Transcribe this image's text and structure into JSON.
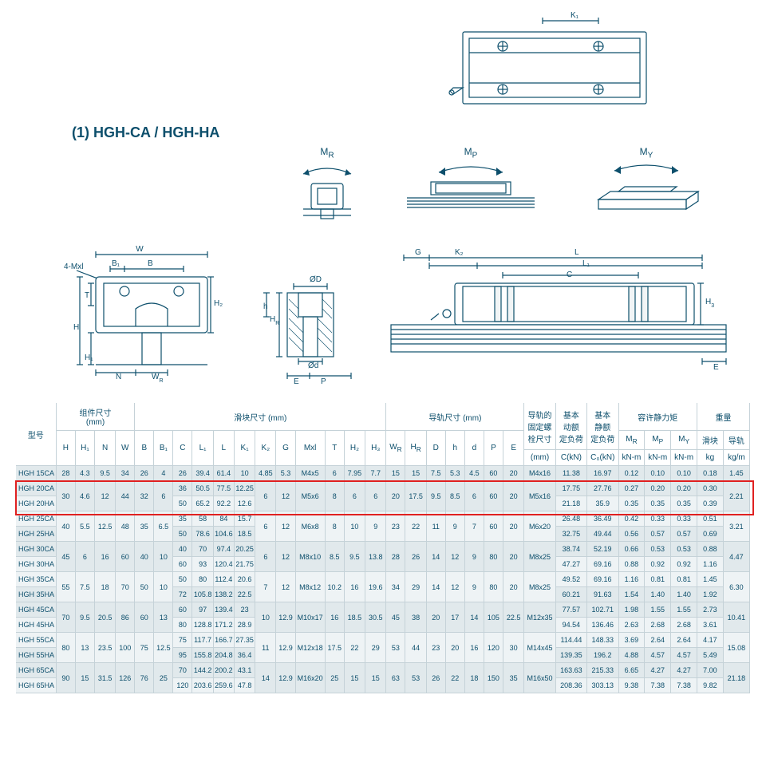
{
  "title": "(1) HGH-CA / HGH-HA",
  "moment_labels": {
    "mr": "M",
    "mr_sub": "R",
    "mp": "M",
    "mp_sub": "P",
    "my": "M",
    "my_sub": "Y"
  },
  "dims_top": {
    "k1": "K₁"
  },
  "dims_front": {
    "w": "W",
    "b": "B",
    "b1": "B₁",
    "t": "T",
    "h": "H",
    "h1": "H₁",
    "h2": "H₂",
    "n": "N",
    "wr": "W_R",
    "fourMxl": "4-Mxl"
  },
  "dims_bolt": {
    "OD": "ØD",
    "Od": "Ød",
    "hr": "H_R",
    "h": "h",
    "e": "E",
    "p": "P"
  },
  "dims_side": {
    "g": "G",
    "k2": "K₂",
    "c": "C",
    "l": "L",
    "l1": "L₁",
    "h3": "H₃",
    "e": "E"
  },
  "headers": {
    "model": "型号",
    "assembly": "组件尺寸",
    "assembly_unit": "(mm)",
    "block": "滑块尺寸 (mm)",
    "rail": "导轨尺寸 (mm)",
    "railbolt": "导轨的\n固定螺\n栓尺寸",
    "dyn": "基本\n动额\n定负荷",
    "stat": "基本\n静额\n定负荷",
    "moment": "容许静力矩",
    "mass": "重量",
    "H": "H",
    "H1": "H₁",
    "N": "N",
    "W": "W",
    "B": "B",
    "B1": "B₁",
    "C": "C",
    "L1": "L₁",
    "L": "L",
    "K1": "K₁",
    "K2": "K₂",
    "G": "G",
    "Mxl": "Mxl",
    "T": "T",
    "H2": "H₂",
    "H3": "H₃",
    "WR": "W_R",
    "HR": "H_R",
    "D": "D",
    "hh": "h",
    "dd": "d",
    "P": "P",
    "E": "E",
    "mm": "(mm)",
    "CkN": "C(kN)",
    "C0kN": "C₀(kN)",
    "MR": "M_R",
    "MP": "M_P",
    "MY": "M_Y",
    "kNm": "kN-m",
    "block_mass": "滑块",
    "rail_mass": "导轨",
    "kg": "kg",
    "kgm": "kg/m"
  },
  "rows": [
    {
      "model": "HGH 15CA",
      "H": "28",
      "H1": "4.3",
      "N": "9.5",
      "W": "34",
      "B": "26",
      "B1": "4",
      "C": "26",
      "L1": "39.4",
      "L": "61.4",
      "K1": "10",
      "K2": "4.85",
      "G": "5.3",
      "Mxl": "M4x5",
      "T": "6",
      "H2": "7.95",
      "H3": "7.7",
      "WR": "15",
      "HR": "15",
      "D": "7.5",
      "h": "5.3",
      "d": "4.5",
      "P": "60",
      "E": "20",
      "bolt": "M4x16",
      "CkN": "11.38",
      "C0kN": "16.97",
      "MR": "0.12",
      "MP": "0.10",
      "MY": "0.10",
      "kg": "0.18",
      "kgm": "1.45"
    },
    {
      "model": "HGH 20CA",
      "H": "30",
      "H1": "4.6",
      "N": "12",
      "W": "44",
      "B": "32",
      "B1": "6",
      "C": "36",
      "L1": "50.5",
      "L": "77.5",
      "K1": "12.25",
      "K2": "6",
      "G": "12",
      "Mxl": "M5x6",
      "T": "8",
      "H2": "6",
      "H3": "6",
      "WR": "20",
      "HR": "17.5",
      "D": "9.5",
      "h": "8.5",
      "d": "6",
      "P": "60",
      "E": "20",
      "bolt": "M5x16",
      "CkN": "17.75",
      "C0kN": "27.76",
      "MR": "0.27",
      "MP": "0.20",
      "MY": "0.20",
      "kg": "0.30",
      "kgm": "2.21"
    },
    {
      "model": "HGH 20HA",
      "H": "",
      "H1": "",
      "N": "",
      "W": "",
      "B": "",
      "B1": "",
      "C": "50",
      "L1": "65.2",
      "L": "92.2",
      "K1": "12.6",
      "K2": "",
      "G": "",
      "Mxl": "",
      "T": "",
      "H2": "",
      "H3": "",
      "WR": "",
      "HR": "",
      "D": "",
      "h": "",
      "d": "",
      "P": "",
      "E": "",
      "bolt": "",
      "CkN": "21.18",
      "C0kN": "35.9",
      "MR": "0.35",
      "MP": "0.35",
      "MY": "0.35",
      "kg": "0.39",
      "kgm": ""
    },
    {
      "model": "HGH 25CA",
      "H": "40",
      "H1": "5.5",
      "N": "12.5",
      "W": "48",
      "B": "35",
      "B1": "6.5",
      "C": "35",
      "L1": "58",
      "L": "84",
      "K1": "15.7",
      "K2": "6",
      "G": "12",
      "Mxl": "M6x8",
      "T": "8",
      "H2": "10",
      "H3": "9",
      "WR": "23",
      "HR": "22",
      "D": "11",
      "h": "9",
      "d": "7",
      "P": "60",
      "E": "20",
      "bolt": "M6x20",
      "CkN": "26.48",
      "C0kN": "36.49",
      "MR": "0.42",
      "MP": "0.33",
      "MY": "0.33",
      "kg": "0.51",
      "kgm": "3.21"
    },
    {
      "model": "HGH 25HA",
      "H": "",
      "H1": "",
      "N": "",
      "W": "",
      "B": "",
      "B1": "",
      "C": "50",
      "L1": "78.6",
      "L": "104.6",
      "K1": "18.5",
      "K2": "",
      "G": "",
      "Mxl": "",
      "T": "",
      "H2": "",
      "H3": "",
      "WR": "",
      "HR": "",
      "D": "",
      "h": "",
      "d": "",
      "P": "",
      "E": "",
      "bolt": "",
      "CkN": "32.75",
      "C0kN": "49.44",
      "MR": "0.56",
      "MP": "0.57",
      "MY": "0.57",
      "kg": "0.69",
      "kgm": ""
    },
    {
      "model": "HGH 30CA",
      "H": "45",
      "H1": "6",
      "N": "16",
      "W": "60",
      "B": "40",
      "B1": "10",
      "C": "40",
      "L1": "70",
      "L": "97.4",
      "K1": "20.25",
      "K2": "6",
      "G": "12",
      "Mxl": "M8x10",
      "T": "8.5",
      "H2": "9.5",
      "H3": "13.8",
      "WR": "28",
      "HR": "26",
      "D": "14",
      "h": "12",
      "d": "9",
      "P": "80",
      "E": "20",
      "bolt": "M8x25",
      "CkN": "38.74",
      "C0kN": "52.19",
      "MR": "0.66",
      "MP": "0.53",
      "MY": "0.53",
      "kg": "0.88",
      "kgm": "4.47"
    },
    {
      "model": "HGH 30HA",
      "H": "",
      "H1": "",
      "N": "",
      "W": "",
      "B": "",
      "B1": "",
      "C": "60",
      "L1": "93",
      "L": "120.4",
      "K1": "21.75",
      "K2": "",
      "G": "",
      "Mxl": "",
      "T": "",
      "H2": "",
      "H3": "",
      "WR": "",
      "HR": "",
      "D": "",
      "h": "",
      "d": "",
      "P": "",
      "E": "",
      "bolt": "",
      "CkN": "47.27",
      "C0kN": "69.16",
      "MR": "0.88",
      "MP": "0.92",
      "MY": "0.92",
      "kg": "1.16",
      "kgm": ""
    },
    {
      "model": "HGH 35CA",
      "H": "55",
      "H1": "7.5",
      "N": "18",
      "W": "70",
      "B": "50",
      "B1": "10",
      "C": "50",
      "L1": "80",
      "L": "112.4",
      "K1": "20.6",
      "K2": "7",
      "G": "12",
      "Mxl": "M8x12",
      "T": "10.2",
      "H2": "16",
      "H3": "19.6",
      "WR": "34",
      "HR": "29",
      "D": "14",
      "h": "12",
      "d": "9",
      "P": "80",
      "E": "20",
      "bolt": "M8x25",
      "CkN": "49.52",
      "C0kN": "69.16",
      "MR": "1.16",
      "MP": "0.81",
      "MY": "0.81",
      "kg": "1.45",
      "kgm": "6.30"
    },
    {
      "model": "HGH 35HA",
      "H": "",
      "H1": "",
      "N": "",
      "W": "",
      "B": "",
      "B1": "",
      "C": "72",
      "L1": "105.8",
      "L": "138.2",
      "K1": "22.5",
      "K2": "",
      "G": "",
      "Mxl": "",
      "T": "",
      "H2": "",
      "H3": "",
      "WR": "",
      "HR": "",
      "D": "",
      "h": "",
      "d": "",
      "P": "",
      "E": "",
      "bolt": "",
      "CkN": "60.21",
      "C0kN": "91.63",
      "MR": "1.54",
      "MP": "1.40",
      "MY": "1.40",
      "kg": "1.92",
      "kgm": ""
    },
    {
      "model": "HGH 45CA",
      "H": "70",
      "H1": "9.5",
      "N": "20.5",
      "W": "86",
      "B": "60",
      "B1": "13",
      "C": "60",
      "L1": "97",
      "L": "139.4",
      "K1": "23",
      "K2": "10",
      "G": "12.9",
      "Mxl": "M10x17",
      "T": "16",
      "H2": "18.5",
      "H3": "30.5",
      "WR": "45",
      "HR": "38",
      "D": "20",
      "h": "17",
      "d": "14",
      "P": "105",
      "E": "22.5",
      "bolt": "M12x35",
      "CkN": "77.57",
      "C0kN": "102.71",
      "MR": "1.98",
      "MP": "1.55",
      "MY": "1.55",
      "kg": "2.73",
      "kgm": "10.41"
    },
    {
      "model": "HGH 45HA",
      "H": "",
      "H1": "",
      "N": "",
      "W": "",
      "B": "",
      "B1": "",
      "C": "80",
      "L1": "128.8",
      "L": "171.2",
      "K1": "28.9",
      "K2": "",
      "G": "",
      "Mxl": "",
      "T": "",
      "H2": "",
      "H3": "",
      "WR": "",
      "HR": "",
      "D": "",
      "h": "",
      "d": "",
      "P": "",
      "E": "",
      "bolt": "",
      "CkN": "94.54",
      "C0kN": "136.46",
      "MR": "2.63",
      "MP": "2.68",
      "MY": "2.68",
      "kg": "3.61",
      "kgm": ""
    },
    {
      "model": "HGH 55CA",
      "H": "80",
      "H1": "13",
      "N": "23.5",
      "W": "100",
      "B": "75",
      "B1": "12.5",
      "C": "75",
      "L1": "117.7",
      "L": "166.7",
      "K1": "27.35",
      "K2": "11",
      "G": "12.9",
      "Mxl": "M12x18",
      "T": "17.5",
      "H2": "22",
      "H3": "29",
      "WR": "53",
      "HR": "44",
      "D": "23",
      "h": "20",
      "d": "16",
      "P": "120",
      "E": "30",
      "bolt": "M14x45",
      "CkN": "114.44",
      "C0kN": "148.33",
      "MR": "3.69",
      "MP": "2.64",
      "MY": "2.64",
      "kg": "4.17",
      "kgm": "15.08"
    },
    {
      "model": "HGH 55HA",
      "H": "",
      "H1": "",
      "N": "",
      "W": "",
      "B": "",
      "B1": "",
      "C": "95",
      "L1": "155.8",
      "L": "204.8",
      "K1": "36.4",
      "K2": "",
      "G": "",
      "Mxl": "",
      "T": "",
      "H2": "",
      "H3": "",
      "WR": "",
      "HR": "",
      "D": "",
      "h": "",
      "d": "",
      "P": "",
      "E": "",
      "bolt": "",
      "CkN": "139.35",
      "C0kN": "196.2",
      "MR": "4.88",
      "MP": "4.57",
      "MY": "4.57",
      "kg": "5.49",
      "kgm": ""
    },
    {
      "model": "HGH 65CA",
      "H": "90",
      "H1": "15",
      "N": "31.5",
      "W": "126",
      "B": "76",
      "B1": "25",
      "C": "70",
      "L1": "144.2",
      "L": "200.2",
      "K1": "43.1",
      "K2": "14",
      "G": "12.9",
      "Mxl": "M16x20",
      "T": "25",
      "H2": "15",
      "H3": "15",
      "WR": "63",
      "HR": "53",
      "D": "26",
      "h": "22",
      "d": "18",
      "P": "150",
      "E": "35",
      "bolt": "M16x50",
      "CkN": "163.63",
      "C0kN": "215.33",
      "MR": "6.65",
      "MP": "4.27",
      "MY": "4.27",
      "kg": "7.00",
      "kgm": "21.18"
    },
    {
      "model": "HGH 65HA",
      "H": "",
      "H1": "",
      "N": "",
      "W": "",
      "B": "",
      "B1": "",
      "C": "120",
      "L1": "203.6",
      "L": "259.6",
      "K1": "47.8",
      "K2": "",
      "G": "",
      "Mxl": "",
      "T": "",
      "H2": "",
      "H3": "",
      "WR": "",
      "HR": "",
      "D": "",
      "h": "",
      "d": "",
      "P": "",
      "E": "",
      "bolt": "",
      "CkN": "208.36",
      "C0kN": "303.13",
      "MR": "9.38",
      "MP": "7.38",
      "MY": "7.38",
      "kg": "9.82",
      "kgm": ""
    }
  ],
  "highlight_rows": [
    1,
    2
  ],
  "colors": {
    "line": "#0d4f6c",
    "header_text": "#0d4f6c",
    "stripe1": "#e1e9ec",
    "stripe2": "#eef3f5",
    "border": "#c5d2d8",
    "highlight": "#e02020"
  }
}
